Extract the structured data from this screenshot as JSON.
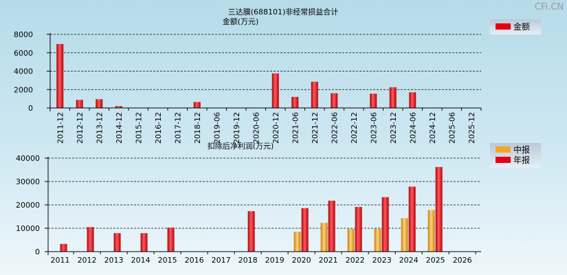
{
  "watermark": "CFi.CN",
  "colors": {
    "year": "#e60012",
    "mid": "#f3a523",
    "grid": "#000000"
  },
  "chart_data": [
    {
      "type": "bar",
      "title": "三达膜(688101)非经常损益合计",
      "subtitle": "金额(万元)",
      "categories": [
        "2011-12",
        "2012-12",
        "2013-12",
        "2014-12",
        "2015-12",
        "2016-12",
        "2017-12",
        "2018-12",
        "2019-06",
        "2019-12",
        "2020-06",
        "2020-12",
        "2021-06",
        "2021-12",
        "2022-06",
        "2022-12",
        "2023-06",
        "2023-12",
        "2024-06",
        "2024-12",
        "2025-06",
        "2025-12"
      ],
      "values": [
        6950,
        880,
        950,
        200,
        null,
        null,
        null,
        650,
        null,
        null,
        null,
        3750,
        1200,
        2850,
        1600,
        null,
        1550,
        2250,
        1700,
        null,
        null,
        null
      ],
      "ylim": [
        0,
        8000
      ],
      "yticks": [
        "0",
        "2000",
        "4000",
        "6000",
        "8000"
      ],
      "legend": [
        {
          "name": "金额",
          "color": "#e60012"
        }
      ],
      "legend_position": "top-right",
      "grid": true
    },
    {
      "type": "bar",
      "subtitle": "扣除后净利润(万元)",
      "categories": [
        "2011",
        "2012",
        "2013",
        "2014",
        "2015",
        "2016",
        "2017",
        "2018",
        "2019",
        "2020",
        "2021",
        "2022",
        "2023",
        "2024",
        "2025",
        "2026"
      ],
      "series": [
        {
          "name": "中报",
          "color": "#f3a523",
          "values": [
            null,
            null,
            null,
            null,
            null,
            null,
            null,
            null,
            null,
            8500,
            12300,
            9700,
            9800,
            14300,
            17800,
            null
          ]
        },
        {
          "name": "年报",
          "color": "#e60012",
          "values": [
            3300,
            10500,
            7900,
            7900,
            10300,
            null,
            null,
            17300,
            null,
            18600,
            21800,
            19100,
            23300,
            27800,
            36200,
            null
          ]
        }
      ],
      "ylim": [
        0,
        40000
      ],
      "yticks": [
        "0",
        "10000",
        "20000",
        "30000",
        "40000"
      ],
      "legend_position": "top-right",
      "grid": true
    }
  ]
}
